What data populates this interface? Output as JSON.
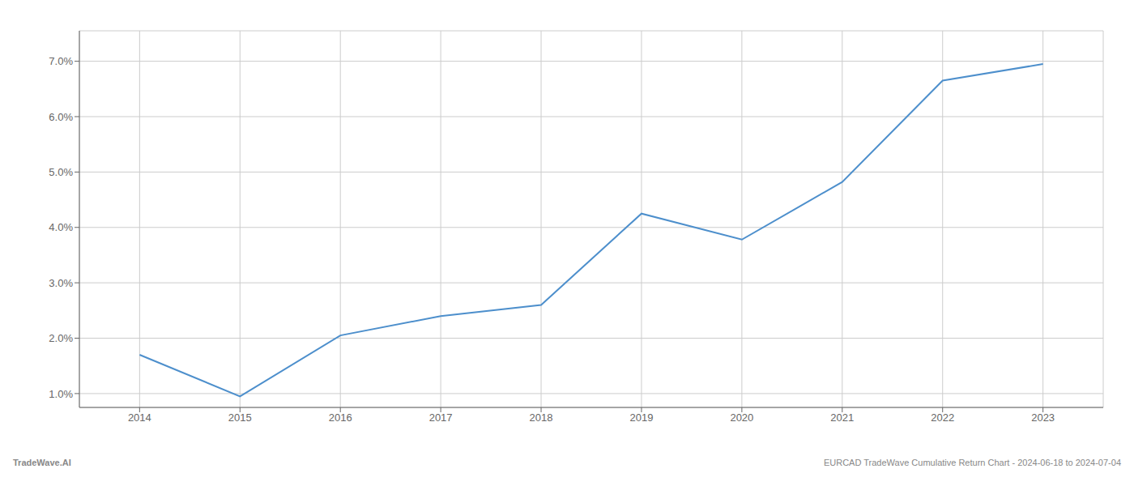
{
  "chart_data": {
    "type": "line",
    "x": [
      2014,
      2015,
      2016,
      2017,
      2018,
      2019,
      2020,
      2021,
      2022,
      2023
    ],
    "values": [
      1.7,
      0.95,
      2.05,
      2.4,
      2.6,
      4.25,
      3.78,
      4.82,
      6.65,
      6.95
    ],
    "color": "#4d8fcc",
    "xlim": [
      2013.4,
      2023.6
    ],
    "xticks": [
      2014,
      2015,
      2016,
      2017,
      2018,
      2019,
      2020,
      2021,
      2022,
      2023
    ],
    "ylim": [
      0.75,
      7.55
    ],
    "yticks": [
      {
        "value": 1.0,
        "label": "1.0%"
      },
      {
        "value": 2.0,
        "label": "2.0%"
      },
      {
        "value": 3.0,
        "label": "3.0%"
      },
      {
        "value": 4.0,
        "label": "4.0%"
      },
      {
        "value": 5.0,
        "label": "5.0%"
      },
      {
        "value": 6.0,
        "label": "6.0%"
      },
      {
        "value": 7.0,
        "label": "7.0%"
      }
    ],
    "grid": true,
    "annotations": [
      "TradeWave.AI",
      "EURCAD TradeWave Cumulative Return Chart - 2024-06-18 to 2024-07-04"
    ]
  }
}
